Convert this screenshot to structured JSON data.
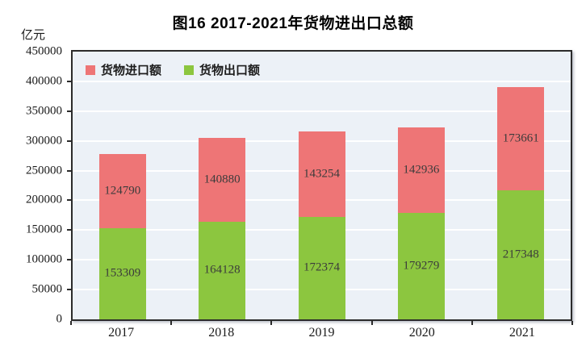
{
  "title": "图16  2017-2021年货物进出口总额",
  "unit_label": "亿元",
  "legend": [
    {
      "label": "货物进口额",
      "color": "#ee7576"
    },
    {
      "label": "货物出口额",
      "color": "#8cc63f"
    }
  ],
  "chart_data": {
    "type": "bar",
    "stacked": true,
    "title": "图16  2017-2021年货物进出口总额",
    "ylabel": "亿元",
    "xlabel": "",
    "categories": [
      "2017",
      "2018",
      "2019",
      "2020",
      "2021"
    ],
    "series": [
      {
        "name": "货物出口额",
        "color": "#8cc63f",
        "values": [
          153309,
          164128,
          172374,
          179279,
          217348
        ]
      },
      {
        "name": "货物进口额",
        "color": "#ee7576",
        "values": [
          124790,
          140880,
          143254,
          142936,
          173661
        ]
      }
    ],
    "totals": [
      278099,
      305008,
      315628,
      322215,
      391009
    ],
    "ylim": [
      0,
      450000
    ],
    "ytick_step": 50000,
    "yticks": [
      0,
      50000,
      100000,
      150000,
      200000,
      250000,
      300000,
      350000,
      400000,
      450000
    ],
    "grid": true,
    "gridline_color": "#ffffff",
    "plot_background": "#ecf1f7",
    "legend_position": "top-left",
    "value_labels": "inside-segments"
  }
}
